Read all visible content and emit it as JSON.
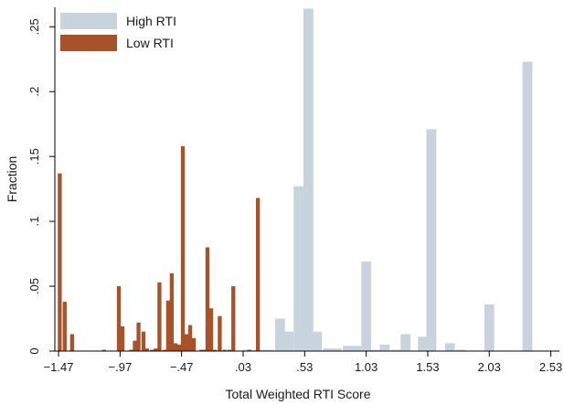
{
  "chart_data": {
    "type": "bar",
    "title": "",
    "xlabel": "Total Weighted RTI Score",
    "ylabel": "Fraction",
    "xlim": [
      -1.5,
      2.6
    ],
    "ylim": [
      0,
      0.265
    ],
    "xticks": [
      -1.47,
      -0.97,
      -0.47,
      0.03,
      0.53,
      1.03,
      1.53,
      2.03,
      2.53
    ],
    "xtick_labels": [
      "−1.47",
      "−.97",
      "−.47",
      ".03",
      ".53",
      "1.03",
      "1.53",
      "2.03",
      "2.53"
    ],
    "yticks": [
      0,
      0.05,
      0.1,
      0.15,
      0.2,
      0.25
    ],
    "ytick_labels": [
      "0",
      ".05",
      ".1",
      ".15",
      ".2",
      ".25"
    ],
    "grid": false,
    "legend_position": "top-left",
    "series": [
      {
        "name": "High RTI",
        "color": "#c9d3de",
        "bar_width": 0.08,
        "points": [
          {
            "x": 0.07,
            "y": 0.001
          },
          {
            "x": 0.16,
            "y": 0.001
          },
          {
            "x": 0.24,
            "y": 0.001
          },
          {
            "x": 0.33,
            "y": 0.025
          },
          {
            "x": 0.4,
            "y": 0.015
          },
          {
            "x": 0.48,
            "y": 0.127
          },
          {
            "x": 0.56,
            "y": 0.264
          },
          {
            "x": 0.63,
            "y": 0.015
          },
          {
            "x": 0.72,
            "y": 0.002
          },
          {
            "x": 0.79,
            "y": 0.002
          },
          {
            "x": 0.88,
            "y": 0.004
          },
          {
            "x": 0.95,
            "y": 0.004
          },
          {
            "x": 1.03,
            "y": 0.069
          },
          {
            "x": 1.1,
            "y": 0.001
          },
          {
            "x": 1.18,
            "y": 0.005
          },
          {
            "x": 1.27,
            "y": 0.001
          },
          {
            "x": 1.35,
            "y": 0.013
          },
          {
            "x": 1.49,
            "y": 0.011
          },
          {
            "x": 1.56,
            "y": 0.171
          },
          {
            "x": 1.71,
            "y": 0.006
          },
          {
            "x": 1.8,
            "y": 0.001
          },
          {
            "x": 2.03,
            "y": 0.036
          },
          {
            "x": 2.34,
            "y": 0.223
          }
        ]
      },
      {
        "name": "Low RTI",
        "color": "#a8522a",
        "bar_width": 0.032,
        "points": [
          {
            "x": -1.46,
            "y": 0.137
          },
          {
            "x": -1.42,
            "y": 0.038
          },
          {
            "x": -1.36,
            "y": 0.013
          },
          {
            "x": -1.1,
            "y": 0.001
          },
          {
            "x": -0.98,
            "y": 0.05
          },
          {
            "x": -0.95,
            "y": 0.019
          },
          {
            "x": -0.88,
            "y": 0.001
          },
          {
            "x": -0.85,
            "y": 0.008
          },
          {
            "x": -0.82,
            "y": 0.022
          },
          {
            "x": -0.78,
            "y": 0.015
          },
          {
            "x": -0.75,
            "y": 0.002
          },
          {
            "x": -0.71,
            "y": 0.001
          },
          {
            "x": -0.68,
            "y": 0.002
          },
          {
            "x": -0.65,
            "y": 0.053
          },
          {
            "x": -0.61,
            "y": 0.001
          },
          {
            "x": -0.58,
            "y": 0.039
          },
          {
            "x": -0.55,
            "y": 0.06
          },
          {
            "x": -0.52,
            "y": 0.006
          },
          {
            "x": -0.49,
            "y": 0.005
          },
          {
            "x": -0.46,
            "y": 0.158
          },
          {
            "x": -0.43,
            "y": 0.013
          },
          {
            "x": -0.4,
            "y": 0.02
          },
          {
            "x": -0.37,
            "y": 0.01
          },
          {
            "x": -0.31,
            "y": 0.001
          },
          {
            "x": -0.28,
            "y": 0.001
          },
          {
            "x": -0.26,
            "y": 0.08
          },
          {
            "x": -0.23,
            "y": 0.033
          },
          {
            "x": -0.2,
            "y": 0.001
          },
          {
            "x": -0.16,
            "y": 0.027
          },
          {
            "x": -0.12,
            "y": 0.001
          },
          {
            "x": -0.08,
            "y": 0.001
          },
          {
            "x": -0.05,
            "y": 0.05
          },
          {
            "x": 0.08,
            "y": 0.001
          },
          {
            "x": 0.15,
            "y": 0.118
          }
        ]
      }
    ]
  }
}
